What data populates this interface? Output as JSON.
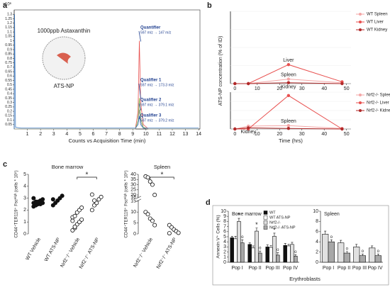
{
  "chart_data": [
    {
      "type": "line",
      "panel": "a",
      "y_multiplier": "x10⁶",
      "xlabel": "Counts vs Acquisition Time (min)",
      "inset_title": "1000ppb Astaxanthin",
      "inset_label": "ATS-NP",
      "x": [
        0,
        0.03,
        0.1,
        0.5,
        9.2,
        9.4,
        9.5,
        9.6,
        9.8,
        10.2,
        14
      ],
      "series": [
        {
          "name": "Quantifier",
          "transition": "597 m/z → 147 m/z",
          "color": "#e8504f",
          "values": [
            0,
            0,
            0,
            0,
            0,
            0.2,
            1.0,
            0.3,
            0.05,
            0,
            0
          ]
        },
        {
          "name": "Qualifier 1",
          "transition": "597 m/z → 173.3 m/z",
          "color": "#7fb24a",
          "values": [
            0,
            0,
            0,
            0,
            0,
            0.1,
            0.35,
            0.12,
            0.02,
            0,
            0
          ]
        },
        {
          "name": "Qualifier 2",
          "transition": "597 m/z → 379.1 m/z",
          "color": "#9a9a9a",
          "values": [
            0,
            0,
            0,
            0,
            0,
            0.06,
            0.22,
            0.08,
            0.01,
            0,
            0
          ]
        },
        {
          "name": "Qualifier 3",
          "transition": "597 m/z → 379.2 m/z",
          "color": "#3a78c2",
          "values": [
            0,
            1.3,
            0.02,
            0.01,
            0.01,
            0.05,
            0.15,
            0.05,
            0.01,
            0.01,
            0.01
          ]
        }
      ],
      "xlim": [
        0,
        14.1
      ],
      "xticks": [
        1,
        2,
        3,
        4,
        5,
        6,
        7,
        8,
        9,
        10,
        11,
        12,
        13,
        14
      ],
      "ylim": [
        0,
        1.35
      ],
      "yticks": [
        0.05,
        0.1,
        0.15,
        0.2,
        0.25,
        0.3,
        0.35,
        0.4,
        0.45,
        0.5,
        0.55,
        0.6,
        0.65,
        0.7,
        0.75,
        0.8,
        0.85,
        0.9,
        0.95,
        1,
        1.05,
        1.1,
        1.15,
        1.2,
        1.25,
        1.3
      ]
    },
    {
      "type": "line",
      "panel": "b",
      "ylabel": "ATS-NP concentration (% of ID)",
      "markers": true,
      "x": [
        0,
        6,
        24,
        48
      ],
      "series": [
        {
          "name": "WT Spleen",
          "point_label": "Spleen",
          "color": "#f4a6a6",
          "values": [
            0,
            0,
            5,
            1
          ]
        },
        {
          "name": "WT Liver",
          "point_label": "Liver",
          "color": "#e8504f",
          "values": [
            0,
            0,
            21,
            2
          ]
        },
        {
          "name": "WT Kidney",
          "point_label": "Kidney",
          "color": "#b02a2a",
          "values": [
            0,
            0,
            1,
            0
          ]
        }
      ],
      "xlim": [
        -2,
        52
      ],
      "xticks": [
        0,
        10,
        20,
        30,
        40,
        50
      ],
      "ylim": [
        0,
        80
      ]
    },
    {
      "type": "line",
      "xlabel": "Time (hrs)",
      "markers": true,
      "x": [
        0,
        6,
        24,
        48
      ],
      "series": [
        {
          "name": "Nrf2-/- Spleen",
          "point_label": "Spleen",
          "color": "#f4a6a6",
          "values": [
            0,
            5,
            6,
            1
          ]
        },
        {
          "name": "Nrf2-/- Liver",
          "color": "#e8504f",
          "values": [
            0,
            0,
            59,
            0
          ]
        },
        {
          "name": "Nrf2-/- Kidney",
          "point_label": "Kidney",
          "color": "#b02a2a",
          "values": [
            0,
            2,
            1,
            0
          ]
        }
      ],
      "xlim": [
        -2,
        52
      ],
      "xticks": [
        0,
        10,
        20,
        30,
        40,
        50
      ],
      "ylim": [
        0,
        65
      ]
    },
    {
      "type": "dot",
      "panel": "c",
      "title": "Bone marrow",
      "ylabel": "CD44⁺TER119⁺ Fscᴴⁱᵍʰ (cells * 10⁵)",
      "bracket_label": "*",
      "categories": [
        "WT Vehicle",
        "WT ATS-NP",
        "Nrf2⁻/⁻ Vehicle",
        "Nrf2⁻/⁻ ATS-NP"
      ],
      "filled": [
        true,
        true,
        false,
        false
      ],
      "points": [
        [
          2.3,
          2.4,
          2.5,
          2.5,
          2.6,
          2.6,
          2.7,
          2.7,
          2.8,
          2.9,
          3.0,
          2.4
        ],
        [
          2.4,
          2.6,
          2.8,
          3.0,
          3.2,
          2.9
        ],
        [
          0.3,
          0.5,
          0.8,
          1.0,
          1.2,
          1.4,
          1.5,
          1.8,
          2.0,
          2.2,
          1.1,
          0.6
        ],
        [
          2.0,
          2.4,
          2.6,
          2.9,
          3.1,
          3.3,
          2.8
        ]
      ],
      "ylim": [
        0,
        5
      ],
      "yticks": [
        0,
        1,
        2,
        3,
        4,
        5
      ]
    },
    {
      "type": "dot",
      "title": "Spleen",
      "ylabel": "CD44⁺TER119⁺ Fscᴴⁱᵍʰ (cells * 10⁵)",
      "bracket_label": "*",
      "categories": [
        "Nrf2⁻/⁻ Vehicle",
        "Nrf2⁻/⁻ ATS-NP"
      ],
      "filled": [
        false,
        false
      ],
      "points": [
        [
          38,
          37,
          33,
          30,
          20,
          10,
          9,
          7,
          6,
          4
        ],
        [
          4,
          3,
          2,
          1.2,
          0.5,
          0.3
        ]
      ],
      "ylim": [
        0,
        40
      ],
      "ybreak": [
        15,
        18
      ],
      "yticks": [
        0,
        5,
        10,
        15,
        18,
        20,
        25,
        30,
        35,
        40
      ]
    },
    {
      "type": "bar",
      "panel": "d",
      "title": "Bone marrow",
      "ylabel": "Annexin V⁺ Cells (%)",
      "xlabel": "Erythroblasts",
      "categories": [
        "Pop I",
        "Pop II",
        "Pop III",
        "Pop IV"
      ],
      "series": [
        {
          "name": "WT",
          "color": "#111111",
          "values": [
            4.8,
            3.5,
            3.0,
            3.3
          ],
          "errors": [
            0.3,
            0.3,
            0.4,
            0.4
          ],
          "markers": [
            null,
            null,
            null,
            null
          ]
        },
        {
          "name": "WT ATS-NP",
          "color": "#ffffff",
          "values": [
            4.6,
            2.8,
            2.9,
            3.2
          ],
          "errors": [
            0.5,
            0.4,
            0.4,
            0.3
          ],
          "markers": [
            null,
            null,
            null,
            null
          ]
        },
        {
          "name": "Nrf2-/-",
          "color": "#e0e0e0",
          "values": [
            8.0,
            6.1,
            5.1,
            3.5
          ],
          "errors": [
            0.6,
            0.6,
            0.6,
            0.4
          ],
          "markers": [
            "*",
            "*",
            "*",
            null
          ]
        },
        {
          "name": "Nrf2-/- ATS-NP",
          "color": "#a8a8a8",
          "values": [
            3.8,
            1.8,
            1.4,
            1.2
          ],
          "errors": [
            0.6,
            0.4,
            0.5,
            0.3
          ],
          "markers": [
            "o",
            "o",
            "o",
            "o"
          ]
        }
      ],
      "ylim": [
        0,
        10
      ],
      "yticks": [
        0,
        1,
        2,
        3,
        4,
        5,
        6,
        7,
        8,
        9,
        10
      ]
    },
    {
      "type": "bar",
      "title": "Spleen",
      "categories": [
        "Pop I",
        "Pop II",
        "Pop III",
        "Pop IV"
      ],
      "series": [
        {
          "color": "#e0e0e0",
          "values": [
            5.5,
            3.8,
            3.0,
            2.8
          ],
          "errors": [
            0.6,
            0.5,
            0.5,
            0.4
          ],
          "markers": [
            null,
            null,
            null,
            null
          ]
        },
        {
          "color": "#a8a8a8",
          "values": [
            4.0,
            1.8,
            1.3,
            1.3
          ],
          "errors": [
            0.4,
            0.3,
            0.3,
            0.3
          ],
          "markers": [
            "o",
            "o",
            "o",
            "o"
          ]
        }
      ],
      "ylim": [
        0,
        10
      ],
      "yticks": [
        0,
        2,
        4,
        6,
        8,
        10
      ]
    }
  ]
}
